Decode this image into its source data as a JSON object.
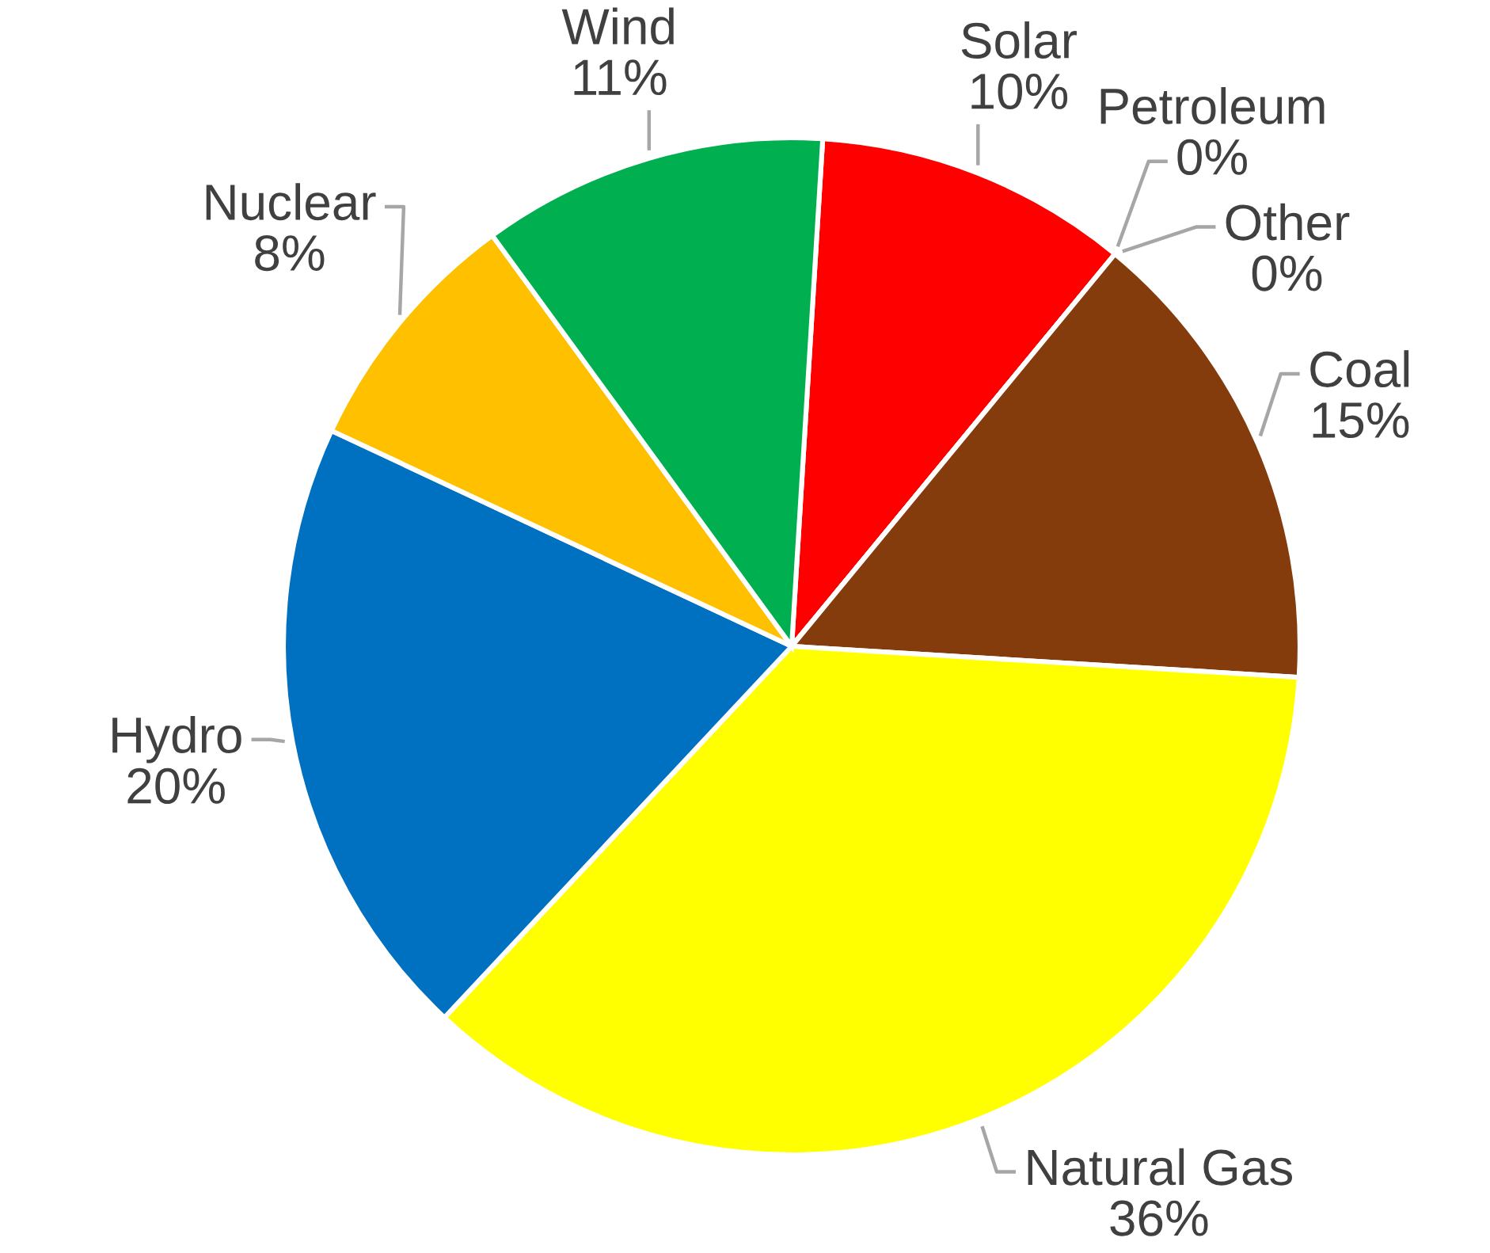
{
  "chart_data": {
    "type": "pie",
    "categories": [
      "Solar",
      "Petroleum",
      "Other",
      "Coal",
      "Natural Gas",
      "Hydro",
      "Nuclear",
      "Wind"
    ],
    "values": [
      10,
      0,
      0,
      15,
      36,
      20,
      8,
      11
    ],
    "colors": [
      "#ff0000",
      "#ffffff",
      "#ffffff",
      "#843c0c",
      "#ffff00",
      "#0070c0",
      "#ffc000",
      "#00b050"
    ],
    "value_labels": [
      "10%",
      "0%",
      "0%",
      "15%",
      "36%",
      "20%",
      "8%",
      "11%"
    ]
  }
}
